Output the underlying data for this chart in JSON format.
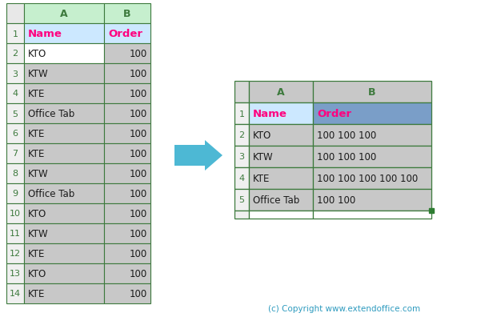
{
  "left_table": {
    "col_headers": [
      "A",
      "B"
    ],
    "row_numbers": [
      "1",
      "2",
      "3",
      "4",
      "5",
      "6",
      "7",
      "8",
      "9",
      "10",
      "11",
      "12",
      "13",
      "14"
    ],
    "header_row": [
      "Name",
      "Order"
    ],
    "data_rows": [
      [
        "KTO",
        "100"
      ],
      [
        "KTW",
        "100"
      ],
      [
        "KTE",
        "100"
      ],
      [
        "Office Tab",
        "100"
      ],
      [
        "KTE",
        "100"
      ],
      [
        "KTE",
        "100"
      ],
      [
        "KTW",
        "100"
      ],
      [
        "Office Tab",
        "100"
      ],
      [
        "KTO",
        "100"
      ],
      [
        "KTW",
        "100"
      ],
      [
        "KTE",
        "100"
      ],
      [
        "KTO",
        "100"
      ],
      [
        "KTE",
        "100"
      ]
    ],
    "col_header_bg": "#c6efce",
    "col_header_fg": "#3d7a3d",
    "header_row_bg": "#cce8ff",
    "header_row_fg": "#ff007f",
    "data_row_bg": "#c8c8c8",
    "data_row_fg": "#1a1a1a",
    "border_color": "#3d7a3d",
    "row_number_fg": "#3d7a3d",
    "row_number_bg": "#f0f0f0",
    "white_cell_row": 0
  },
  "right_table": {
    "col_headers": [
      "A",
      "B"
    ],
    "row_numbers": [
      "1",
      "2",
      "3",
      "4",
      "5"
    ],
    "header_row": [
      "Name",
      "Order"
    ],
    "data_rows": [
      [
        "KTO",
        "100 100 100"
      ],
      [
        "KTW",
        "100 100 100"
      ],
      [
        "KTE",
        "100 100 100 100 100"
      ],
      [
        "Office Tab",
        "100 100"
      ]
    ],
    "col_header_bg": "#c8c8c8",
    "col_header_fg": "#3d7a3d",
    "header_a_bg": "#cce8ff",
    "header_b_bg": "#7a9ec8",
    "header_row_fg": "#ff007f",
    "data_row_bg": "#c8c8c8",
    "data_row_fg": "#1a1a1a",
    "border_color": "#3d7a3d",
    "row_number_fg": "#3d7a3d"
  },
  "arrow_color": "#4db8d4",
  "copyright_text": "(c) Copyright www.extendoffice.com",
  "copyright_color": "#2e9bbf",
  "bg": "#ffffff"
}
